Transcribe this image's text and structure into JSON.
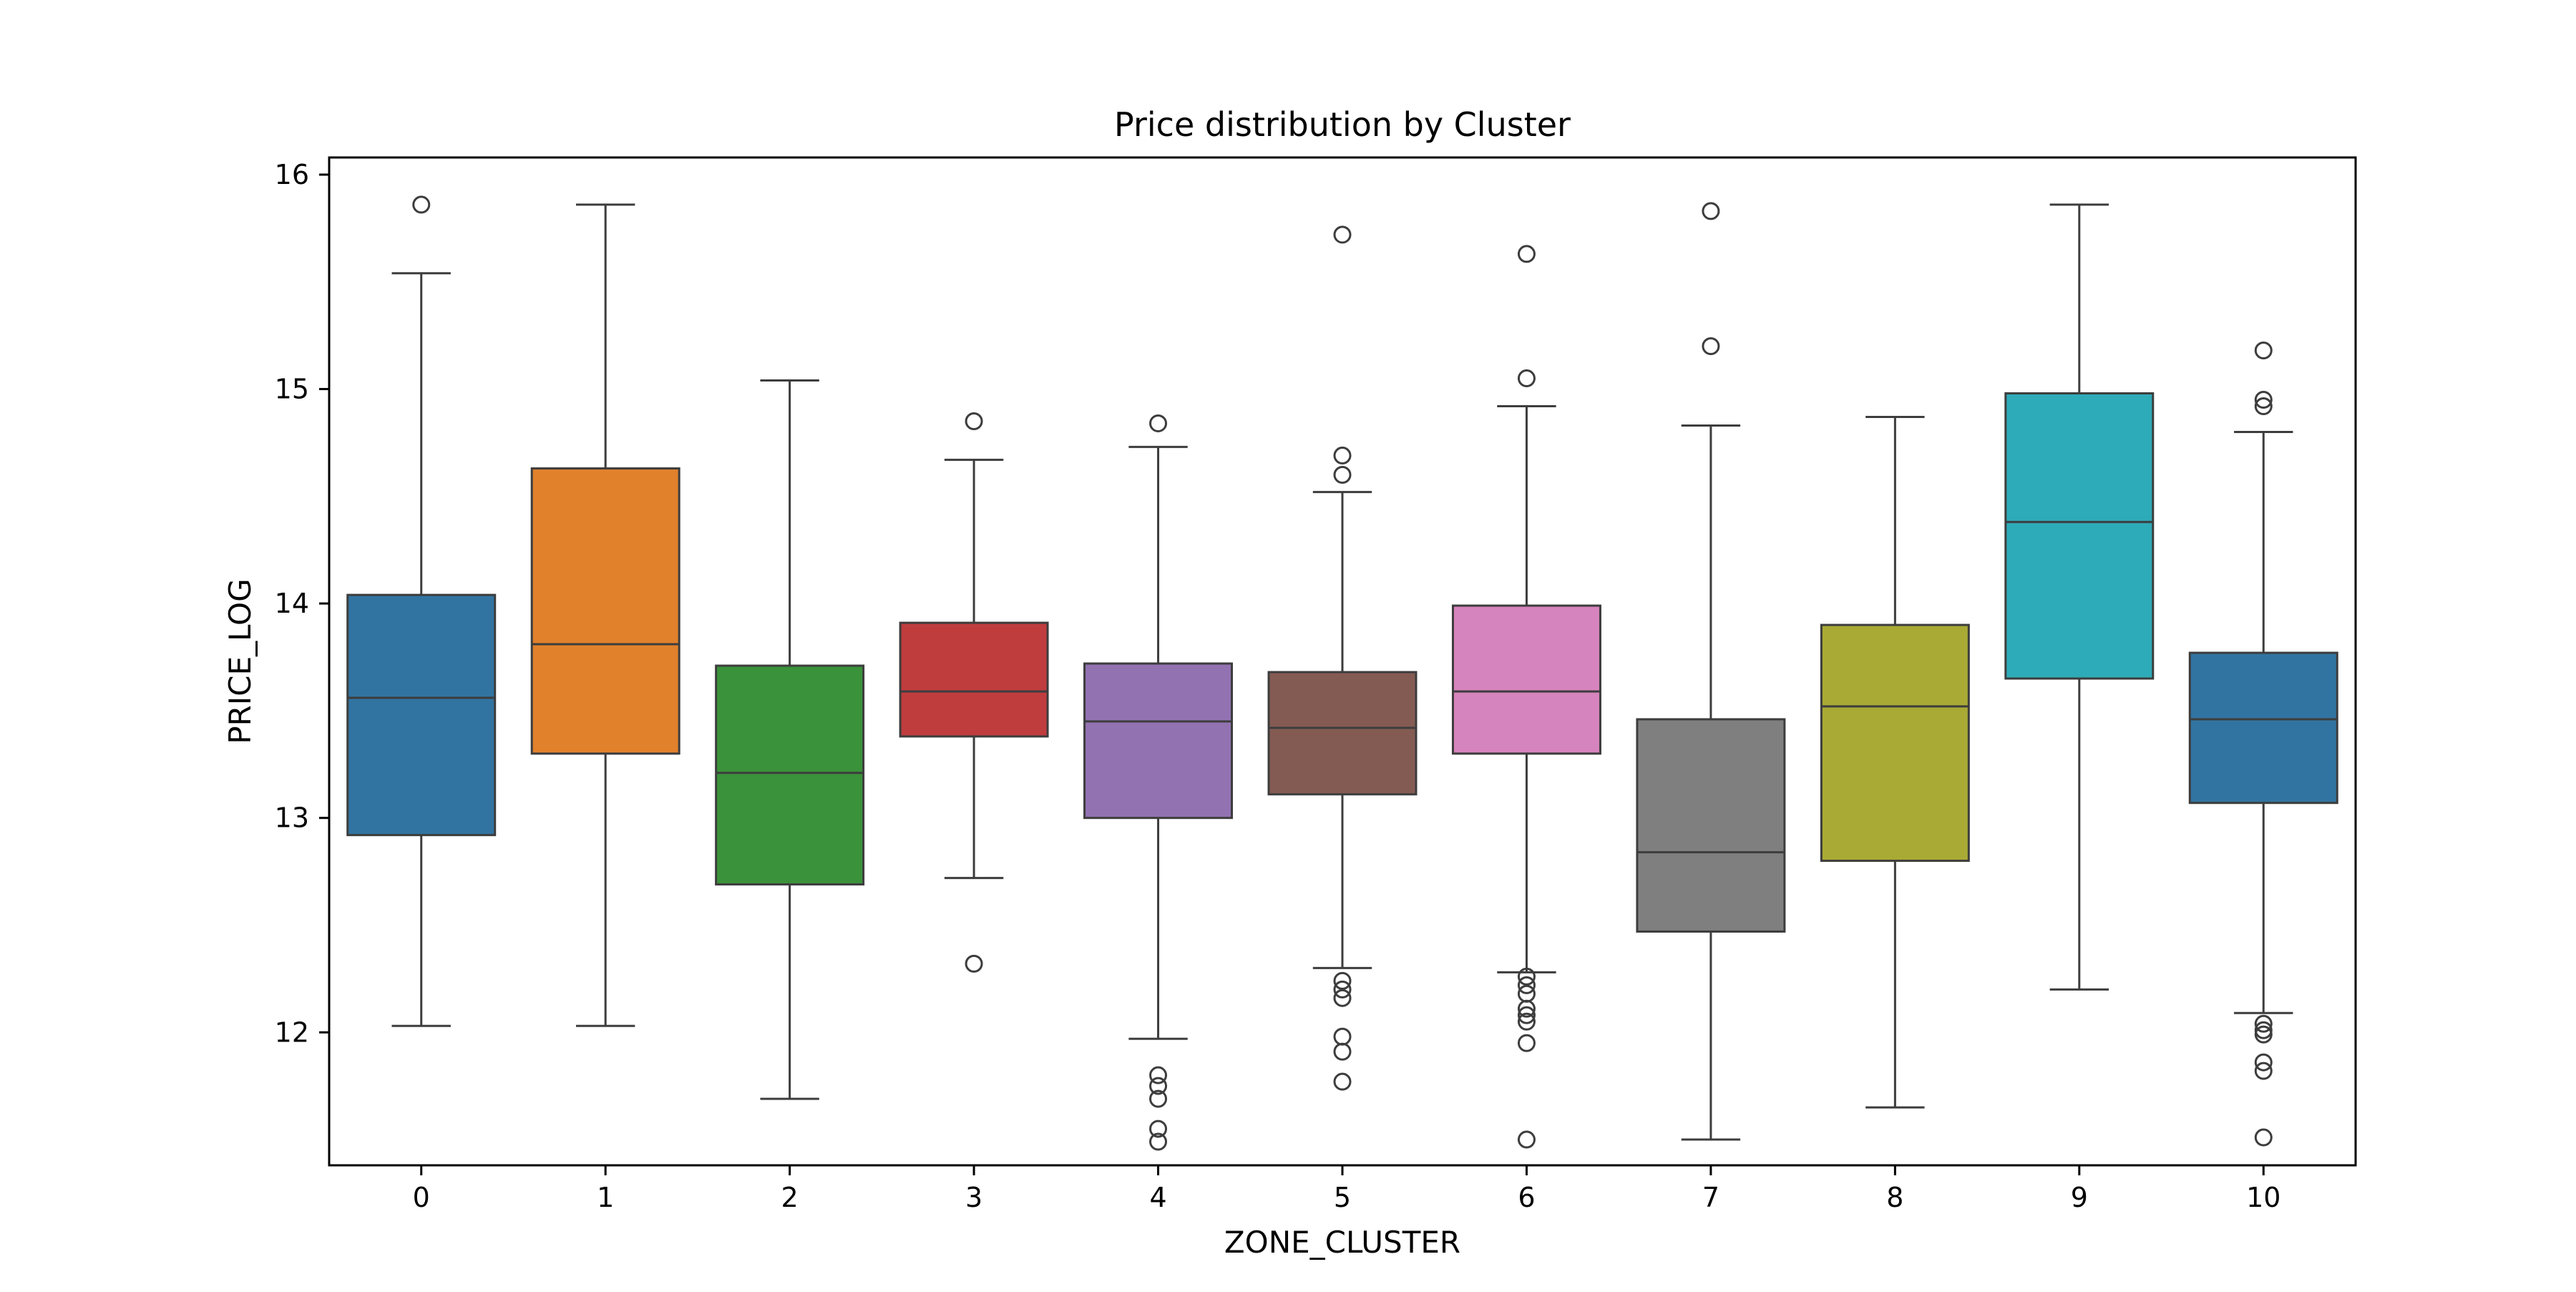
{
  "chart_data": {
    "type": "box",
    "title": "Price distribution by Cluster",
    "xlabel": "ZONE_CLUSTER",
    "ylabel": "PRICE_LOG",
    "ylim": [
      11.38,
      16.08
    ],
    "yticks": [
      12,
      13,
      14,
      15,
      16
    ],
    "grid": false,
    "legend": "none",
    "categories": [
      "0",
      "1",
      "2",
      "3",
      "4",
      "5",
      "6",
      "7",
      "8",
      "9",
      "10"
    ],
    "series": [
      {
        "category": "0",
        "color": "#3274a1",
        "whisker_low": 12.03,
        "q1": 12.92,
        "median": 13.56,
        "q3": 14.04,
        "whisker_high": 15.54,
        "outliers": [
          15.86
        ]
      },
      {
        "category": "1",
        "color": "#e1812c",
        "whisker_low": 12.03,
        "q1": 13.3,
        "median": 13.81,
        "q3": 14.63,
        "whisker_high": 15.86,
        "outliers": []
      },
      {
        "category": "2",
        "color": "#3a923a",
        "whisker_low": 11.69,
        "q1": 12.69,
        "median": 13.21,
        "q3": 13.71,
        "whisker_high": 15.04,
        "outliers": []
      },
      {
        "category": "3",
        "color": "#c03d3e",
        "whisker_low": 12.72,
        "q1": 13.38,
        "median": 13.59,
        "q3": 13.91,
        "whisker_high": 14.67,
        "outliers": [
          14.85,
          12.32
        ]
      },
      {
        "category": "4",
        "color": "#9372b2",
        "whisker_low": 11.97,
        "q1": 13.0,
        "median": 13.45,
        "q3": 13.72,
        "whisker_high": 14.73,
        "outliers": [
          14.84,
          11.8,
          11.75,
          11.69,
          11.55,
          11.49
        ]
      },
      {
        "category": "5",
        "color": "#845b53",
        "whisker_low": 12.3,
        "q1": 13.11,
        "median": 13.42,
        "q3": 13.68,
        "whisker_high": 14.52,
        "outliers": [
          15.72,
          14.69,
          14.6,
          12.24,
          12.2,
          12.16,
          11.98,
          11.91,
          11.77
        ]
      },
      {
        "category": "6",
        "color": "#d684bd",
        "whisker_low": 12.28,
        "q1": 13.3,
        "median": 13.59,
        "q3": 13.99,
        "whisker_high": 14.92,
        "outliers": [
          15.63,
          15.05,
          12.26,
          12.22,
          12.18,
          12.11,
          12.08,
          12.05,
          11.95,
          11.5
        ]
      },
      {
        "category": "7",
        "color": "#7f7f7f",
        "whisker_low": 11.5,
        "q1": 12.47,
        "median": 12.84,
        "q3": 13.46,
        "whisker_high": 14.83,
        "outliers": [
          15.83,
          15.2
        ]
      },
      {
        "category": "8",
        "color": "#a9aa35",
        "whisker_low": 11.65,
        "q1": 12.8,
        "median": 13.52,
        "q3": 13.9,
        "whisker_high": 14.87,
        "outliers": []
      },
      {
        "category": "9",
        "color": "#2eabb8",
        "whisker_low": 12.2,
        "q1": 13.65,
        "median": 14.38,
        "q3": 14.98,
        "whisker_high": 15.86,
        "outliers": []
      },
      {
        "category": "10",
        "color": "#3274a1",
        "whisker_low": 12.09,
        "q1": 13.07,
        "median": 13.46,
        "q3": 13.77,
        "whisker_high": 14.8,
        "outliers": [
          15.18,
          14.95,
          14.92,
          12.04,
          12.01,
          11.99,
          11.86,
          11.82,
          11.51
        ]
      }
    ]
  }
}
